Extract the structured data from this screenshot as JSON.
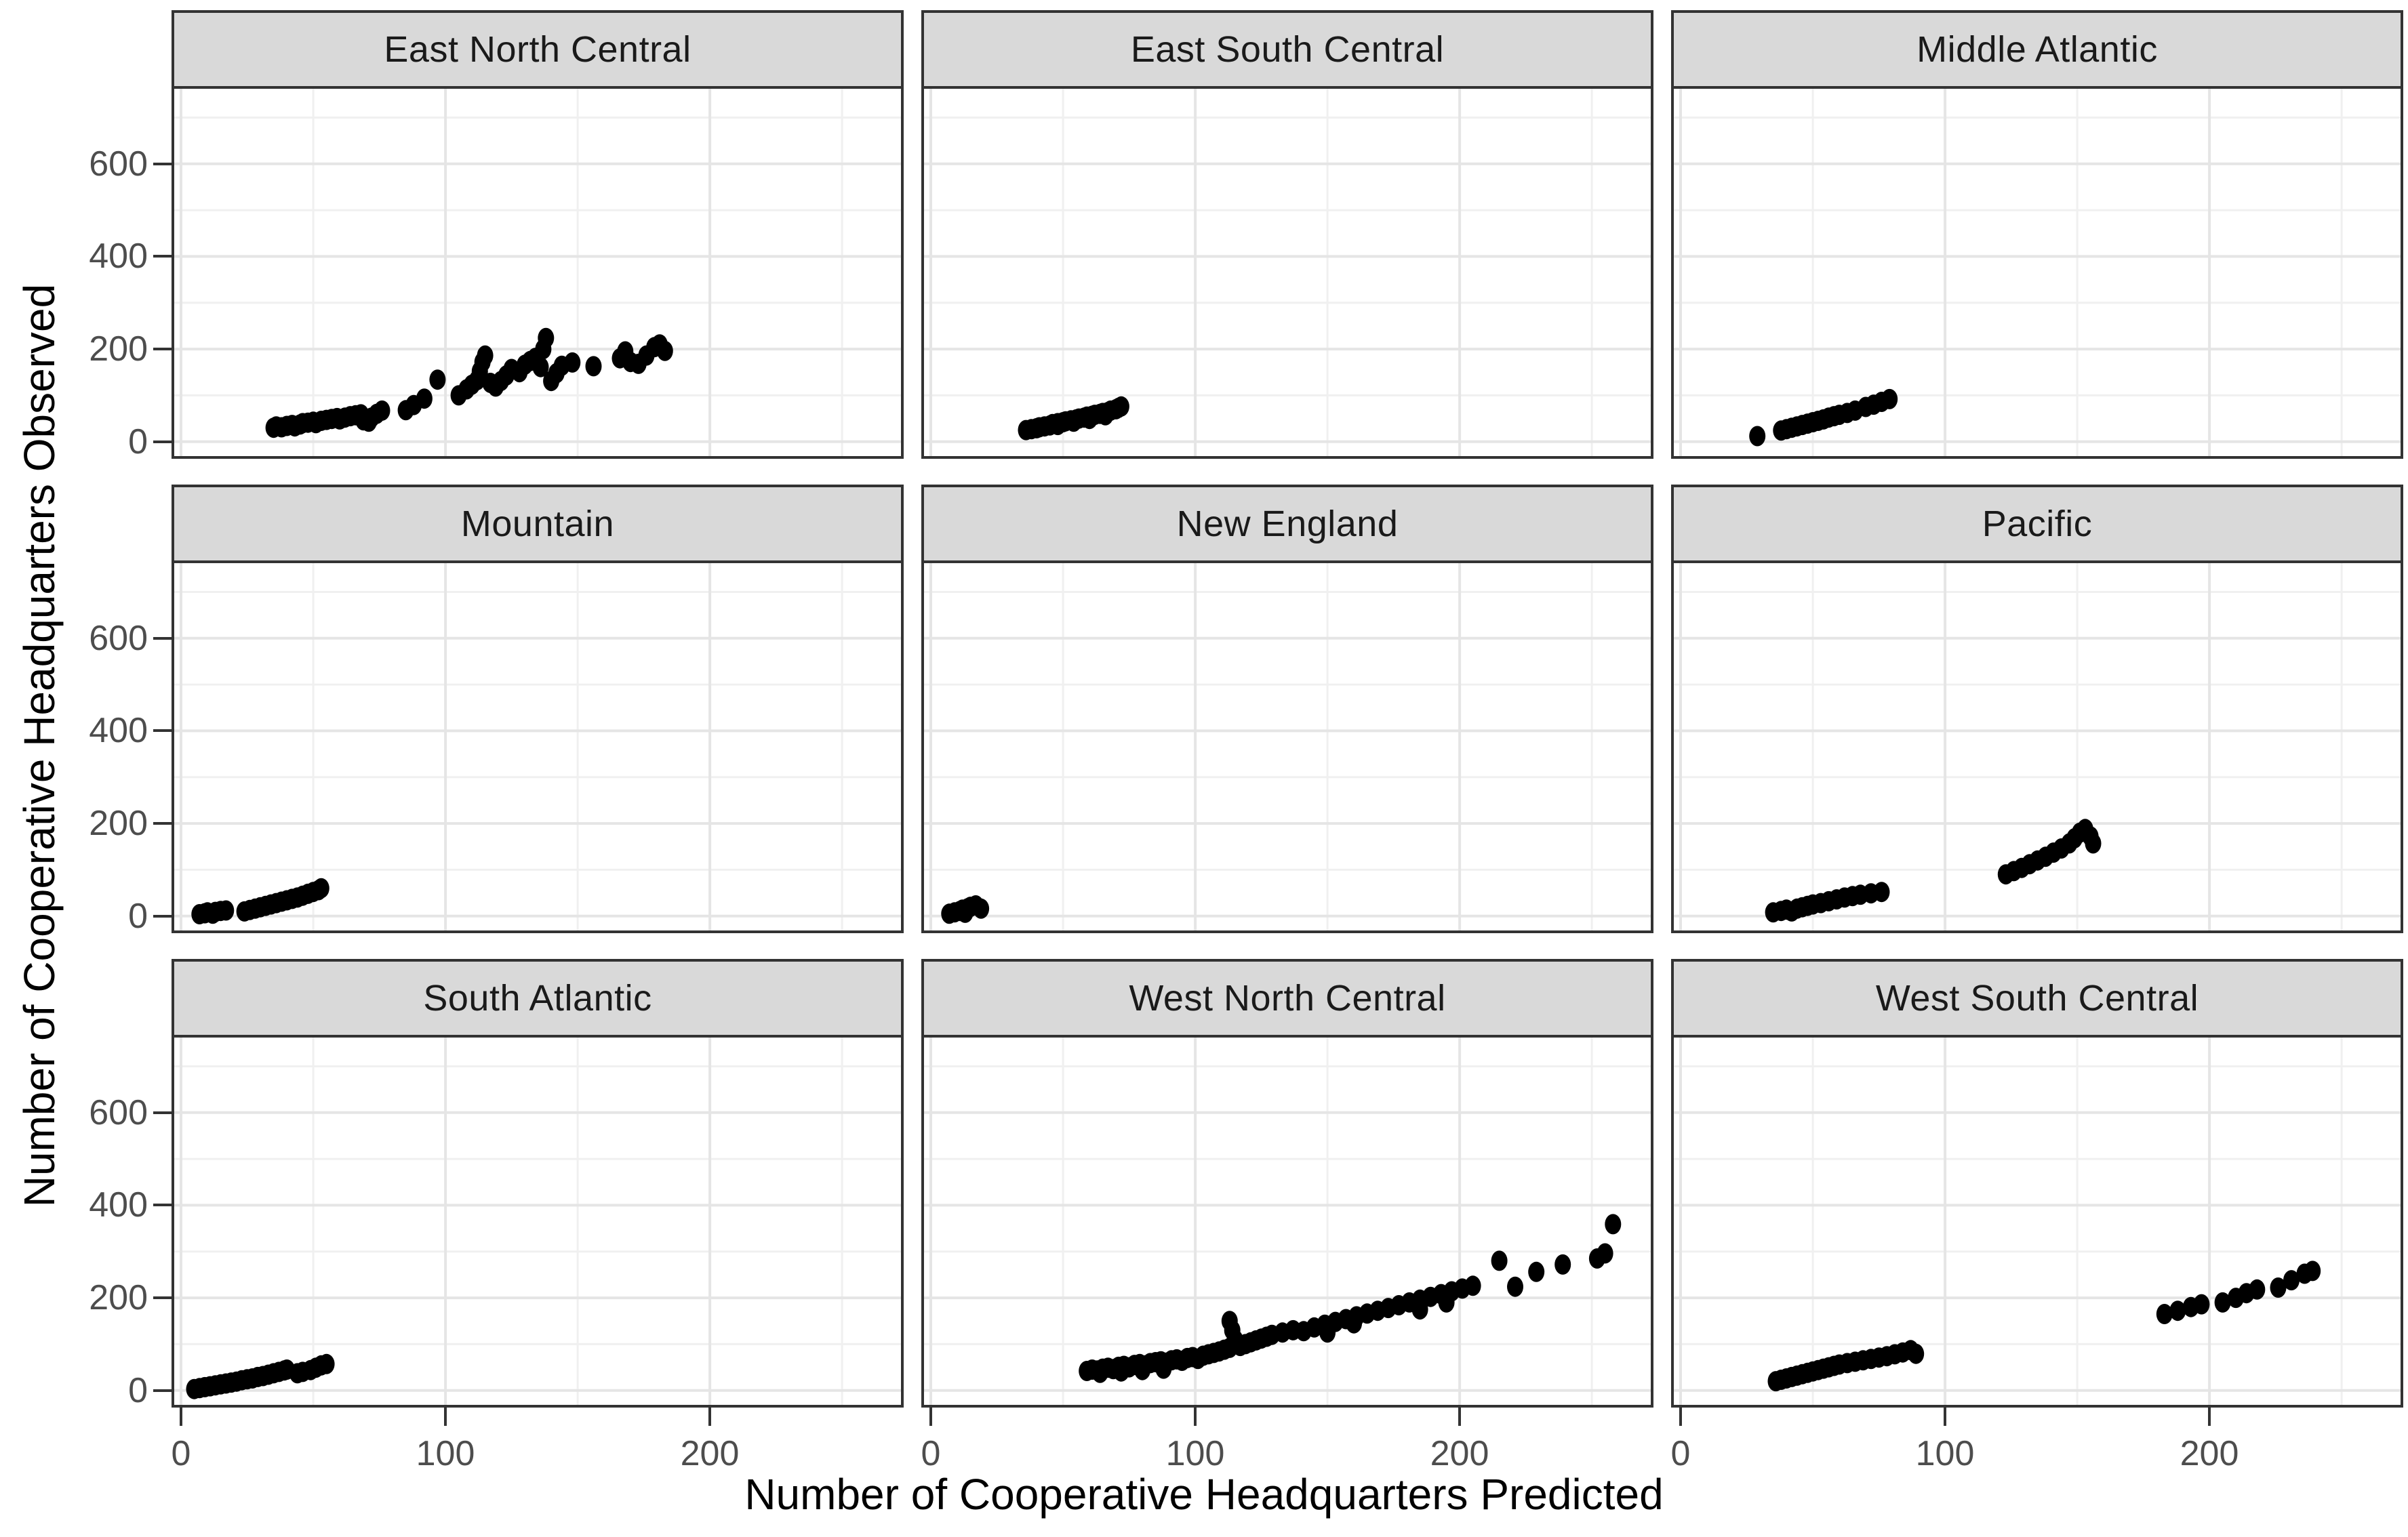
{
  "ui": {
    "x_axis_title": "Number of Cooperative Headquarters Predicted",
    "y_axis_title": "Number of Cooperative Headquarters Observed"
  },
  "chart_data": {
    "type": "scatter",
    "title": "",
    "xlabel": "Number of Cooperative Headquarters Predicted",
    "ylabel": "Number of Cooperative Headquarters Observed",
    "facet_layout": "3x3 grid, shared axes, strip labels on top",
    "xlim": [
      -4,
      273
    ],
    "ylim": [
      -37,
      768
    ],
    "x_ticks": [
      0,
      100,
      200
    ],
    "y_ticks": [
      0,
      200,
      400,
      600
    ],
    "x_minor": [
      50,
      150,
      250
    ],
    "y_minor": [
      100,
      300,
      500,
      700
    ],
    "grid": "on",
    "legend": "none",
    "colors": {
      "point": "#000000",
      "strip_fill": "#d9d9d9",
      "panel_border": "#333333",
      "grid_major": "#e5e5e5",
      "grid_minor": "#f0f0f0",
      "tick_label": "#4d4d4d",
      "axis_title": "#000000",
      "background": "#ffffff"
    },
    "facets": [
      {
        "name": "East North Central",
        "points": [
          [
            35,
            30
          ],
          [
            36,
            33
          ],
          [
            38,
            31
          ],
          [
            40,
            34
          ],
          [
            42,
            36
          ],
          [
            43,
            33
          ],
          [
            45,
            37
          ],
          [
            46,
            40
          ],
          [
            48,
            41
          ],
          [
            50,
            43
          ],
          [
            51,
            40
          ],
          [
            53,
            45
          ],
          [
            55,
            47
          ],
          [
            57,
            49
          ],
          [
            59,
            51
          ],
          [
            60,
            48
          ],
          [
            62,
            52
          ],
          [
            64,
            55
          ],
          [
            66,
            57
          ],
          [
            68,
            59
          ],
          [
            69,
            46
          ],
          [
            71,
            43
          ],
          [
            72,
            52
          ],
          [
            74,
            60
          ],
          [
            76,
            67
          ],
          [
            85,
            68
          ],
          [
            88,
            79
          ],
          [
            92,
            93
          ],
          [
            97,
            134
          ],
          [
            105,
            100
          ],
          [
            108,
            113
          ],
          [
            110,
            123
          ],
          [
            112,
            133
          ],
          [
            113,
            152
          ],
          [
            114,
            172
          ],
          [
            115,
            186
          ],
          [
            117,
            127
          ],
          [
            119,
            119
          ],
          [
            121,
            131
          ],
          [
            123,
            143
          ],
          [
            125,
            157
          ],
          [
            128,
            150
          ],
          [
            130,
            166
          ],
          [
            132,
            174
          ],
          [
            134,
            181
          ],
          [
            136,
            161
          ],
          [
            137,
            200
          ],
          [
            138,
            224
          ],
          [
            140,
            131
          ],
          [
            142,
            148
          ],
          [
            144,
            164
          ],
          [
            148,
            171
          ],
          [
            156,
            163
          ],
          [
            166,
            180
          ],
          [
            168,
            195
          ],
          [
            170,
            172
          ],
          [
            173,
            168
          ],
          [
            176,
            186
          ],
          [
            179,
            204
          ],
          [
            181,
            210
          ],
          [
            183,
            196
          ]
        ]
      },
      {
        "name": "East South Central",
        "points": [
          [
            36,
            25
          ],
          [
            38,
            27
          ],
          [
            40,
            29
          ],
          [
            41,
            31
          ],
          [
            43,
            33
          ],
          [
            45,
            35
          ],
          [
            46,
            38
          ],
          [
            48,
            40
          ],
          [
            50,
            42
          ],
          [
            51,
            44
          ],
          [
            53,
            46
          ],
          [
            55,
            48
          ],
          [
            56,
            50
          ],
          [
            58,
            52
          ],
          [
            59,
            54
          ],
          [
            61,
            56
          ],
          [
            62,
            58
          ],
          [
            64,
            60
          ],
          [
            65,
            62
          ],
          [
            67,
            64
          ],
          [
            68,
            67
          ],
          [
            70,
            70
          ],
          [
            71,
            73
          ],
          [
            72,
            76
          ],
          [
            66,
            57
          ],
          [
            60,
            49
          ],
          [
            54,
            43
          ],
          [
            48,
            36
          ]
        ]
      },
      {
        "name": "Middle Atlantic",
        "points": [
          [
            29,
            12
          ],
          [
            38,
            24
          ],
          [
            40,
            27
          ],
          [
            42,
            30
          ],
          [
            44,
            33
          ],
          [
            46,
            36
          ],
          [
            48,
            39
          ],
          [
            50,
            42
          ],
          [
            52,
            45
          ],
          [
            54,
            48
          ],
          [
            56,
            52
          ],
          [
            58,
            55
          ],
          [
            60,
            58
          ],
          [
            63,
            62
          ],
          [
            66,
            67
          ],
          [
            70,
            75
          ],
          [
            73,
            80
          ],
          [
            76,
            86
          ],
          [
            79,
            92
          ]
        ]
      },
      {
        "name": "Mountain",
        "points": [
          [
            7,
            4
          ],
          [
            9,
            6
          ],
          [
            10,
            8
          ],
          [
            12,
            5
          ],
          [
            13,
            9
          ],
          [
            15,
            11
          ],
          [
            17,
            12
          ],
          [
            24,
            10
          ],
          [
            26,
            13
          ],
          [
            28,
            16
          ],
          [
            30,
            19
          ],
          [
            32,
            22
          ],
          [
            34,
            25
          ],
          [
            36,
            28
          ],
          [
            38,
            31
          ],
          [
            40,
            34
          ],
          [
            42,
            37
          ],
          [
            44,
            40
          ],
          [
            46,
            44
          ],
          [
            48,
            48
          ],
          [
            50,
            52
          ],
          [
            52,
            56
          ],
          [
            53,
            60
          ]
        ]
      },
      {
        "name": "New England",
        "points": [
          [
            7,
            5
          ],
          [
            9,
            8
          ],
          [
            11,
            11
          ],
          [
            12,
            14
          ],
          [
            14,
            17
          ],
          [
            15,
            20
          ],
          [
            17,
            23
          ],
          [
            19,
            16
          ],
          [
            13,
            7
          ]
        ]
      },
      {
        "name": "Pacific",
        "points": [
          [
            35,
            8
          ],
          [
            38,
            11
          ],
          [
            40,
            14
          ],
          [
            42,
            10
          ],
          [
            44,
            16
          ],
          [
            46,
            19
          ],
          [
            48,
            22
          ],
          [
            50,
            25
          ],
          [
            53,
            28
          ],
          [
            56,
            32
          ],
          [
            59,
            36
          ],
          [
            62,
            40
          ],
          [
            65,
            43
          ],
          [
            68,
            46
          ],
          [
            72,
            49
          ],
          [
            76,
            52
          ],
          [
            123,
            90
          ],
          [
            126,
            97
          ],
          [
            129,
            104
          ],
          [
            132,
            112
          ],
          [
            135,
            120
          ],
          [
            138,
            128
          ],
          [
            141,
            137
          ],
          [
            144,
            146
          ],
          [
            147,
            157
          ],
          [
            149,
            168
          ],
          [
            151,
            180
          ],
          [
            153,
            188
          ],
          [
            155,
            172
          ],
          [
            156,
            157
          ]
        ]
      },
      {
        "name": "South Atlantic",
        "points": [
          [
            5,
            3
          ],
          [
            7,
            5
          ],
          [
            9,
            7
          ],
          [
            11,
            9
          ],
          [
            13,
            11
          ],
          [
            15,
            13
          ],
          [
            17,
            15
          ],
          [
            19,
            17
          ],
          [
            21,
            19
          ],
          [
            23,
            22
          ],
          [
            25,
            24
          ],
          [
            27,
            26
          ],
          [
            29,
            29
          ],
          [
            31,
            31
          ],
          [
            33,
            34
          ],
          [
            35,
            37
          ],
          [
            37,
            40
          ],
          [
            39,
            43
          ],
          [
            40,
            45
          ],
          [
            44,
            37
          ],
          [
            46,
            40
          ],
          [
            49,
            44
          ],
          [
            51,
            49
          ],
          [
            53,
            54
          ],
          [
            55,
            57
          ]
        ]
      },
      {
        "name": "West North Central",
        "points": [
          [
            59,
            42
          ],
          [
            61,
            45
          ],
          [
            63,
            43
          ],
          [
            65,
            47
          ],
          [
            67,
            49
          ],
          [
            69,
            46
          ],
          [
            71,
            51
          ],
          [
            73,
            53
          ],
          [
            75,
            50
          ],
          [
            77,
            55
          ],
          [
            79,
            57
          ],
          [
            81,
            54
          ],
          [
            83,
            59
          ],
          [
            85,
            61
          ],
          [
            87,
            63
          ],
          [
            89,
            60
          ],
          [
            91,
            65
          ],
          [
            93,
            67
          ],
          [
            95,
            64
          ],
          [
            88,
            47
          ],
          [
            80,
            44
          ],
          [
            72,
            41
          ],
          [
            64,
            38
          ],
          [
            97,
            70
          ],
          [
            99,
            72
          ],
          [
            101,
            68
          ],
          [
            103,
            75
          ],
          [
            105,
            78
          ],
          [
            107,
            81
          ],
          [
            109,
            84
          ],
          [
            111,
            88
          ],
          [
            113,
            92
          ],
          [
            113,
            150
          ],
          [
            114,
            130
          ],
          [
            115,
            110
          ],
          [
            117,
            96
          ],
          [
            119,
            100
          ],
          [
            121,
            104
          ],
          [
            123,
            108
          ],
          [
            125,
            112
          ],
          [
            127,
            116
          ],
          [
            129,
            120
          ],
          [
            133,
            125
          ],
          [
            137,
            130
          ],
          [
            141,
            128
          ],
          [
            145,
            136
          ],
          [
            149,
            142
          ],
          [
            153,
            148
          ],
          [
            157,
            154
          ],
          [
            161,
            160
          ],
          [
            165,
            166
          ],
          [
            169,
            172
          ],
          [
            173,
            178
          ],
          [
            160,
            145
          ],
          [
            150,
            125
          ],
          [
            177,
            184
          ],
          [
            181,
            190
          ],
          [
            185,
            196
          ],
          [
            189,
            202
          ],
          [
            193,
            208
          ],
          [
            197,
            214
          ],
          [
            201,
            220
          ],
          [
            205,
            226
          ],
          [
            195,
            190
          ],
          [
            185,
            175
          ],
          [
            215,
            280
          ],
          [
            221,
            224
          ],
          [
            229,
            256
          ],
          [
            239,
            272
          ],
          [
            252,
            285
          ],
          [
            255,
            296
          ],
          [
            258,
            359
          ]
        ]
      },
      {
        "name": "West South Central",
        "points": [
          [
            36,
            20
          ],
          [
            38,
            23
          ],
          [
            40,
            26
          ],
          [
            42,
            29
          ],
          [
            44,
            32
          ],
          [
            46,
            35
          ],
          [
            48,
            38
          ],
          [
            50,
            41
          ],
          [
            52,
            44
          ],
          [
            54,
            47
          ],
          [
            56,
            50
          ],
          [
            58,
            53
          ],
          [
            60,
            56
          ],
          [
            63,
            59
          ],
          [
            66,
            62
          ],
          [
            69,
            65
          ],
          [
            72,
            68
          ],
          [
            75,
            71
          ],
          [
            78,
            74
          ],
          [
            81,
            78
          ],
          [
            84,
            82
          ],
          [
            87,
            87
          ],
          [
            89,
            79
          ],
          [
            183,
            165
          ],
          [
            188,
            172
          ],
          [
            193,
            180
          ],
          [
            197,
            186
          ],
          [
            205,
            190
          ],
          [
            210,
            200
          ],
          [
            214,
            210
          ],
          [
            218,
            218
          ],
          [
            226,
            222
          ],
          [
            231,
            238
          ],
          [
            236,
            252
          ],
          [
            239,
            258
          ]
        ]
      }
    ]
  }
}
